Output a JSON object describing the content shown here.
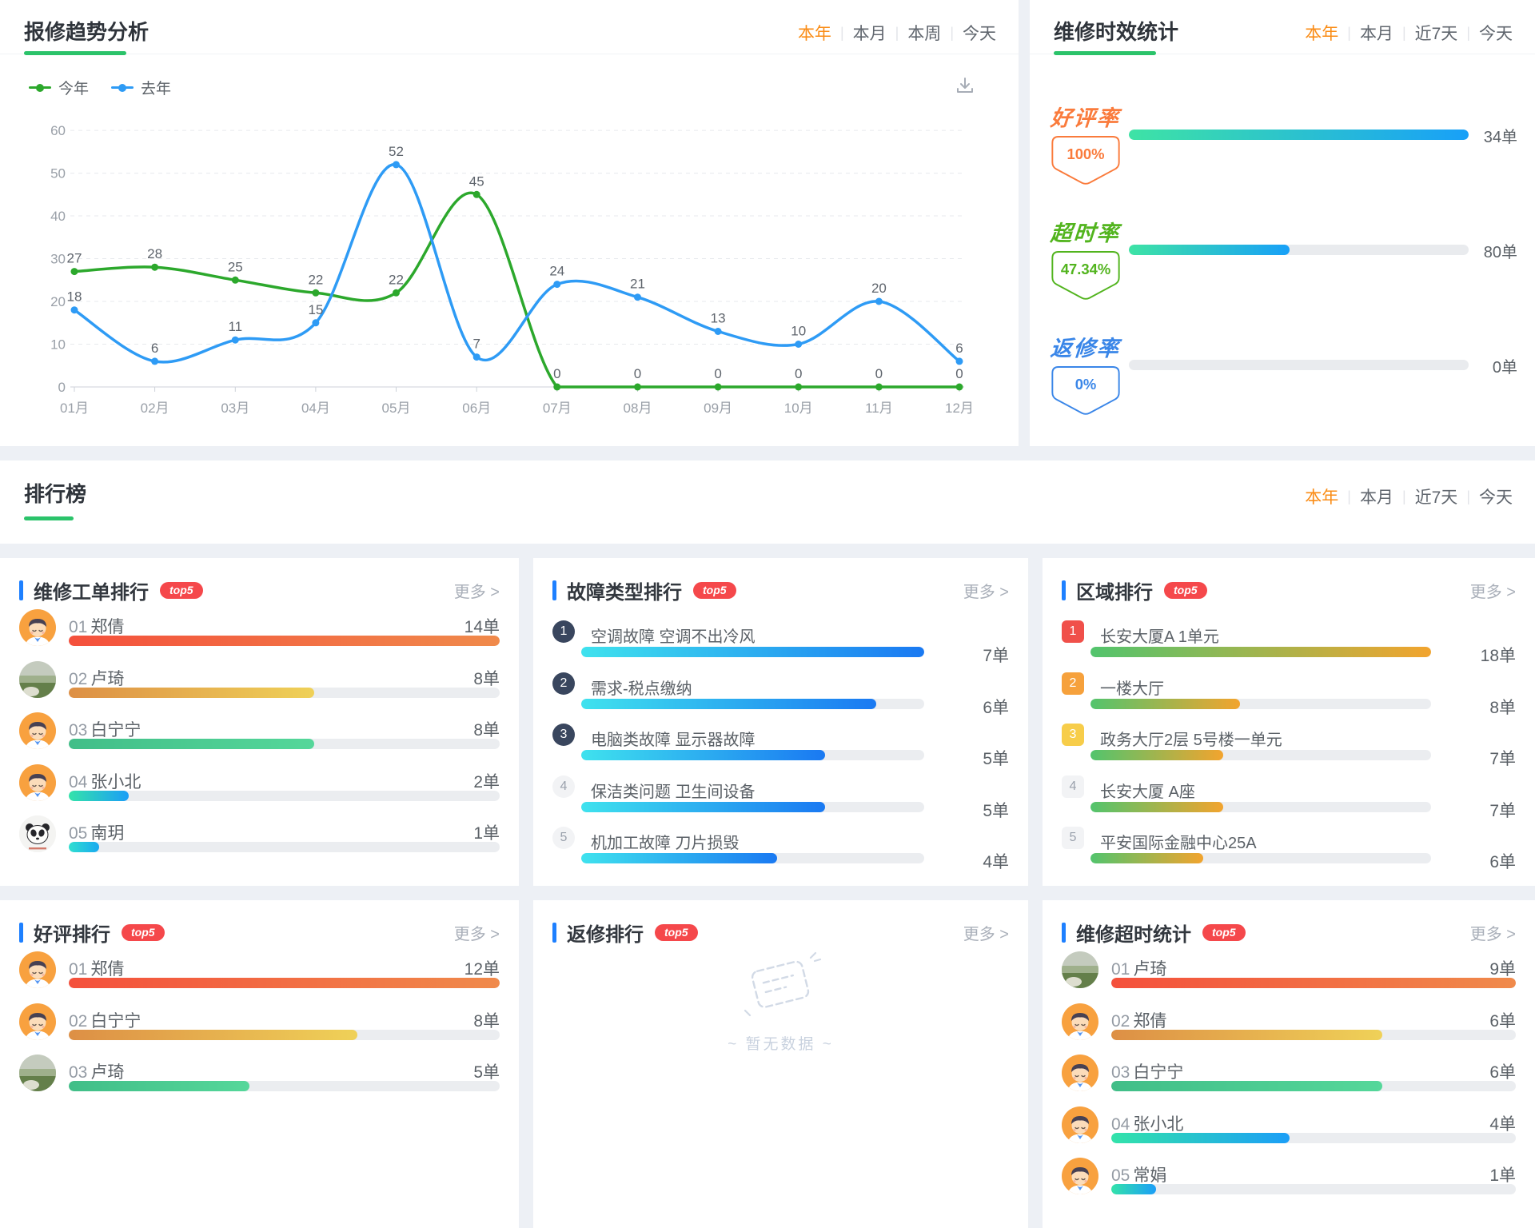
{
  "trend_panel": {
    "title": "报修趋势分析",
    "filters": [
      "本年",
      "本月",
      "本周",
      "今天"
    ],
    "active_filter": "本年",
    "legend": [
      {
        "label": "今年",
        "color": "#2CA82C"
      },
      {
        "label": "去年",
        "color": "#2E9BF5"
      }
    ],
    "download_icon": "download-icon"
  },
  "chart_data": {
    "type": "line",
    "title": "报修趋势分析",
    "categories": [
      "01月",
      "02月",
      "03月",
      "04月",
      "05月",
      "06月",
      "07月",
      "08月",
      "09月",
      "10月",
      "11月",
      "12月"
    ],
    "series": [
      {
        "name": "今年",
        "color": "#2CA82C",
        "values": [
          27,
          28,
          25,
          22,
          22,
          45,
          0,
          0,
          0,
          0,
          0,
          0
        ]
      },
      {
        "name": "去年",
        "color": "#2E9BF5",
        "values": [
          18,
          6,
          11,
          15,
          52,
          7,
          24,
          21,
          13,
          10,
          20,
          6
        ]
      }
    ],
    "xlabel": "",
    "ylabel": "",
    "ylim": [
      0,
      60
    ],
    "ytick_step": 10,
    "grid": "dashed-horizontal",
    "legend_position": "top-left",
    "smooth": true
  },
  "efficiency_panel": {
    "title": "维修时效统计",
    "filters": [
      "本年",
      "本月",
      "近7天",
      "今天"
    ],
    "active_filter": "本年",
    "bar_gradient": [
      "#3EE3A5",
      "#18A0F8"
    ],
    "stats": [
      {
        "label": "好评率",
        "percent": "100%",
        "value": "34单",
        "fill": 1,
        "color": "#FA7B3C"
      },
      {
        "label": "超时率",
        "percent": "47.34%",
        "value": "80单",
        "fill": 0.4734,
        "color": "#52B41E"
      },
      {
        "label": "返修率",
        "percent": "0%",
        "value": "0单",
        "fill": 0,
        "color": "#3A86E8"
      }
    ]
  },
  "ranking_section": {
    "title": "排行榜",
    "filters": [
      "本年",
      "本月",
      "近7天",
      "今天"
    ],
    "active_filter": "本年",
    "more_label": "更多",
    "top_badge": "top5",
    "panels": [
      {
        "key": "repair-order-rank",
        "type": "person",
        "title": "维修工单排行",
        "rows": [
          {
            "rank": "01",
            "name": "郑倩",
            "value": "14单",
            "pct": 100,
            "avatar": "cartoon",
            "colors": [
              "#F4503C",
              "#F08A4B"
            ]
          },
          {
            "rank": "02",
            "name": "卢琦",
            "value": "8单",
            "pct": 57,
            "avatar": "photo",
            "colors": [
              "#DD8F45",
              "#EFD158"
            ]
          },
          {
            "rank": "03",
            "name": "白宁宁",
            "value": "8单",
            "pct": 57,
            "avatar": "cartoon",
            "colors": [
              "#41BE88",
              "#55D79A"
            ]
          },
          {
            "rank": "04",
            "name": "张小北",
            "value": "2单",
            "pct": 14,
            "avatar": "cartoon",
            "colors": [
              "#33E3AA",
              "#1B9EF7"
            ]
          },
          {
            "rank": "05",
            "name": "南玥",
            "value": "1单",
            "pct": 7,
            "avatar": "panda",
            "colors": [
              "#30DFD0",
              "#19A9F0"
            ]
          }
        ]
      },
      {
        "key": "fault-type-rank",
        "type": "category",
        "title": "故障类型排行",
        "badge_style": "circle",
        "badge_colors": [
          "#39465E",
          "#39465E",
          "#39465E",
          "#F2F3F5",
          "#F2F3F5"
        ],
        "bar_gradient": [
          "#3FE2EE",
          "#1A79F2"
        ],
        "rows": [
          {
            "rank": "1",
            "label": "空调故障 空调不出冷风",
            "value": "7单",
            "pct": 100
          },
          {
            "rank": "2",
            "label": "需求-税点缴纳",
            "value": "6单",
            "pct": 86
          },
          {
            "rank": "3",
            "label": "电脑类故障 显示器故障",
            "value": "5单",
            "pct": 71
          },
          {
            "rank": "4",
            "label": "保洁类问题 卫生间设备",
            "value": "5单",
            "pct": 71
          },
          {
            "rank": "5",
            "label": "机加工故障 刀片损毁",
            "value": "4单",
            "pct": 57
          }
        ]
      },
      {
        "key": "area-rank",
        "type": "category",
        "title": "区域排行",
        "badge_style": "square",
        "badge_colors": [
          "#F0504A",
          "#F6A13C",
          "#F7CD4A",
          "#F2F3F5",
          "#F2F3F5"
        ],
        "bar_gradient": [
          "#52C46D",
          "#F2A42E"
        ],
        "rows": [
          {
            "rank": "1",
            "label": "长安大厦A 1单元",
            "value": "18单",
            "pct": 100
          },
          {
            "rank": "2",
            "label": "一楼大厅",
            "value": "8单",
            "pct": 44
          },
          {
            "rank": "3",
            "label": "政务大厅2层 5号楼一单元",
            "value": "7单",
            "pct": 39
          },
          {
            "rank": "4",
            "label": "长安大厦 A座",
            "value": "7单",
            "pct": 39
          },
          {
            "rank": "5",
            "label": "平安国际金融中心25A",
            "value": "6单",
            "pct": 33
          }
        ]
      },
      {
        "key": "praise-rank",
        "type": "person",
        "title": "好评排行",
        "rows": [
          {
            "rank": "01",
            "name": "郑倩",
            "value": "12单",
            "pct": 100,
            "avatar": "cartoon",
            "colors": [
              "#F4503C",
              "#F08A4B"
            ]
          },
          {
            "rank": "02",
            "name": "白宁宁",
            "value": "8单",
            "pct": 67,
            "avatar": "cartoon",
            "colors": [
              "#DD8F45",
              "#EFD158"
            ]
          },
          {
            "rank": "03",
            "name": "卢琦",
            "value": "5单",
            "pct": 42,
            "avatar": "photo",
            "colors": [
              "#41BE88",
              "#55D79A"
            ]
          }
        ]
      },
      {
        "key": "rework-rank",
        "type": "empty",
        "title": "返修排行",
        "empty_text": "~ 暂无数据 ~"
      },
      {
        "key": "overtime-rank",
        "type": "person",
        "title": "维修超时统计",
        "rows": [
          {
            "rank": "01",
            "name": "卢琦",
            "value": "9单",
            "pct": 100,
            "avatar": "photo",
            "colors": [
              "#F4503C",
              "#F08A4B"
            ]
          },
          {
            "rank": "02",
            "name": "郑倩",
            "value": "6单",
            "pct": 67,
            "avatar": "cartoon",
            "colors": [
              "#DD8F45",
              "#EFD158"
            ]
          },
          {
            "rank": "03",
            "name": "白宁宁",
            "value": "6单",
            "pct": 67,
            "avatar": "cartoon",
            "colors": [
              "#41BE88",
              "#55D79A"
            ]
          },
          {
            "rank": "04",
            "name": "张小北",
            "value": "4单",
            "pct": 44,
            "avatar": "cartoon",
            "colors": [
              "#33E3AA",
              "#1B9EF7"
            ]
          },
          {
            "rank": "05",
            "name": "常娟",
            "value": "1单",
            "pct": 11,
            "avatar": "cartoon",
            "colors": [
              "#33E3AA",
              "#1B9EF7"
            ]
          }
        ]
      }
    ]
  }
}
